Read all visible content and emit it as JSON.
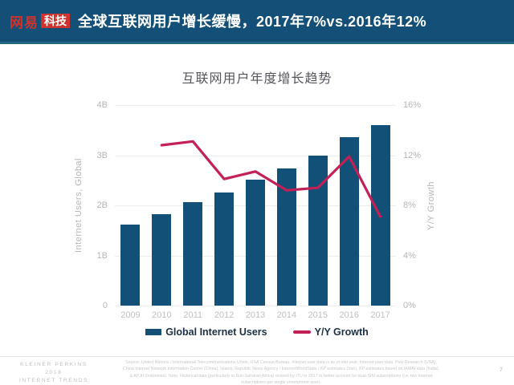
{
  "header": {
    "logo_brand": "网易",
    "logo_sub": "科技",
    "title": "全球互联网用户增长缓慢，2017年7%vs.2016年12%"
  },
  "chart": {
    "title": "互联网用户年度增长趋势",
    "left_axis_title": "Internet Users, Global",
    "right_axis_title": "Y/Y Growth",
    "left_ticks": [
      "4B",
      "3B",
      "2B",
      "1B",
      "0"
    ],
    "right_ticks": [
      "16%",
      "12%",
      "8%",
      "4%",
      "0%"
    ],
    "legend": [
      {
        "label": "Global Internet Users",
        "swatch": "bar"
      },
      {
        "label": "Y/Y Growth",
        "swatch": "line"
      }
    ]
  },
  "chart_data": {
    "type": "bar",
    "title": "互联网用户年度增长趋势",
    "categories": [
      "2009",
      "2010",
      "2011",
      "2012",
      "2013",
      "2014",
      "2015",
      "2016",
      "2017"
    ],
    "series": [
      {
        "name": "Global Internet Users",
        "type": "bar",
        "axis": "left",
        "unit": "billions",
        "values": [
          1.61,
          1.82,
          2.06,
          2.26,
          2.52,
          2.74,
          3.0,
          3.36,
          3.6
        ]
      },
      {
        "name": "Y/Y Growth",
        "type": "line",
        "axis": "right",
        "unit": "%",
        "values": [
          null,
          12.8,
          13.1,
          10.1,
          10.7,
          9.2,
          9.4,
          11.9,
          7.1
        ]
      }
    ],
    "left_axis": {
      "label": "Internet Users, Global",
      "range": [
        0,
        4
      ],
      "tick_step": 1,
      "tick_suffix": "B"
    },
    "right_axis": {
      "label": "Y/Y Growth",
      "range": [
        0,
        16
      ],
      "tick_step": 4,
      "tick_suffix": "%"
    },
    "grid": "horizontal",
    "legend_position": "bottom"
  },
  "colors": {
    "header_bg": "#134F77",
    "header_strip": "#24697F",
    "logo_red": "#CE342E",
    "bar": "#125077",
    "line": "#C22056",
    "axis_text": "#B4B5B9",
    "legend_text": "#1B2F44"
  },
  "footer": {
    "brand_lines": [
      "KLEINER PERKINS",
      "2018",
      "INTERNET TRENDS"
    ],
    "source": "Source: United Nations / International Telecommunications Union, USA Census Bureau. Internet user data is as of mid-year. Internet user data: Pew Research (USA), China Internet Network Information Center (China), Islamic Republic News Agency / InternetWorldStats / KP estimates (Iran), KP estimates based on IAMAI data (India), & APJII (Indonesia). Note: Historical data (particularly in Sub-Saharan Africa) revised by ITU in 2017 to better account for dual-SIM subscriptions (i.e. two internet subscriptions per single smartphone user).",
    "page": "7"
  }
}
